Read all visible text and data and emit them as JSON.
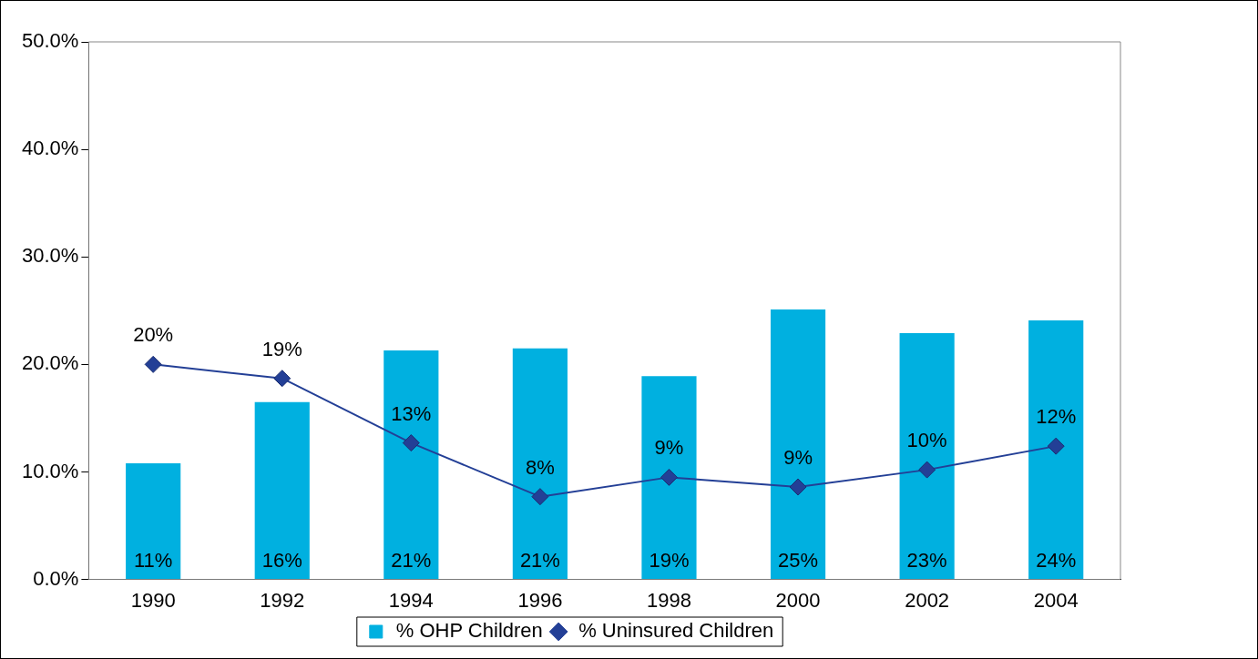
{
  "chart_data": {
    "type": "bar",
    "categories": [
      "1990",
      "1992",
      "1994",
      "1996",
      "1998",
      "2000",
      "2002",
      "2004"
    ],
    "series": [
      {
        "name": "% OHP Children",
        "color": "#00b0e0",
        "values": [
          10.8,
          16.5,
          21.3,
          21.5,
          18.9,
          25.1,
          22.9,
          24.1
        ],
        "value_labels": [
          "11%",
          "16%",
          "21%",
          "21%",
          "19%",
          "25%",
          "23%",
          "24%"
        ]
      },
      {
        "name": "% Uninsured Children",
        "type": "line",
        "color": "#233f96",
        "values": [
          20.0,
          18.7,
          12.7,
          7.7,
          9.5,
          8.6,
          10.2,
          12.4
        ],
        "value_labels": [
          "20%",
          "19%",
          "13%",
          "8%",
          "9%",
          "9%",
          "10%",
          "12%"
        ]
      }
    ],
    "ylim": [
      0,
      50
    ],
    "yticks": [
      {
        "value": 0,
        "label": "0.0%"
      },
      {
        "value": 10,
        "label": "10.0%"
      },
      {
        "value": 20,
        "label": "20.0%"
      },
      {
        "value": 30,
        "label": "30.0%"
      },
      {
        "value": 40,
        "label": "40.0%"
      },
      {
        "value": 50,
        "label": "50.0%"
      }
    ],
    "grid": false,
    "legend": "bottom",
    "marker": "diamond",
    "line_style": "solid"
  }
}
